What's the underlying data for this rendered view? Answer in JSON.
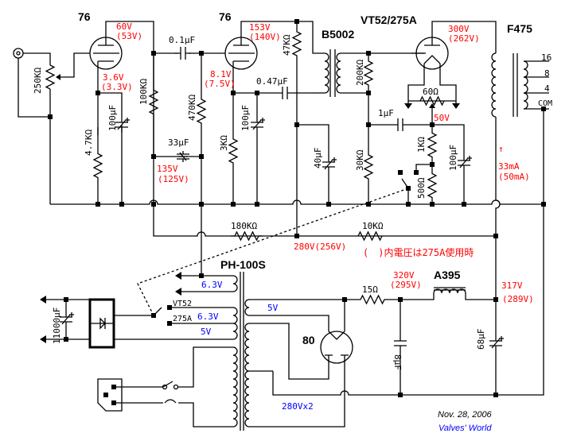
{
  "tubes": {
    "v1": "76",
    "v2": "76",
    "output": "VT52/275A",
    "rectifier": "80"
  },
  "transformers": {
    "interstage": "B5002",
    "output": "F475",
    "power": "PH-100S",
    "choke": "A395"
  },
  "output_taps": [
    "16",
    "8",
    "4",
    "COM"
  ],
  "components": {
    "volume": "250KΩ",
    "r_k1": "4.7KΩ",
    "c_k1": "100µF",
    "r_p1": "100KΩ",
    "c_coupling1": "0.1µF",
    "r_g2": "470KΩ",
    "c_decouple": "33µF",
    "r_k2": "3KΩ",
    "c_k2": "100µF",
    "c_coupling2": "0.47µF",
    "r_p2": "47KΩ",
    "c_b2": "40µF",
    "r_sec": "200KΩ",
    "r_bias": "30KΩ",
    "c_bias": "1µF",
    "hum_pot": "60Ω",
    "r_k3": "1KΩ",
    "r_k3b": "500Ω",
    "c_k3": "100µF",
    "r_dec1": "180KΩ",
    "r_dec2": "10KΩ",
    "r_surge": "15Ω",
    "c_in": "8µF",
    "c_out": "68µF",
    "c_heater": "11000µF"
  },
  "voltages": {
    "v1_plate": "60V",
    "v1_plate_alt": "(53V)",
    "v1_cathode": "3.6V",
    "v1_cathode_alt": "(3.3V)",
    "v1_supply": "135V",
    "v1_supply_alt": "(125V)",
    "v2_plate": "153V",
    "v2_plate_alt": "(140V)",
    "v2_cathode": "8.1V",
    "v2_cathode_alt": "(7.5V)",
    "v3_plate": "300V",
    "v3_plate_alt": "(262V)",
    "v3_cathode": "50V",
    "v3_current": "33mA",
    "v3_current_alt": "(50mA)",
    "current_arrow": "↑",
    "b2": "280V(256V)",
    "b_choke_in": "320V",
    "b_choke_in_alt": "(295V)",
    "b_choke_out": "317V",
    "b_choke_out_alt": "(289V)"
  },
  "power": {
    "heater1": "6.3V",
    "heater_sel_vt52": "VT52",
    "heater_sel_275a": "275A",
    "heater2": "6.3V",
    "heater3": "5V",
    "rect_heater": "5V",
    "hv": "280Vx2"
  },
  "note": "(　)内電圧は275A使用時",
  "date": "Nov. 28, 2006",
  "signature": "Valves' World"
}
